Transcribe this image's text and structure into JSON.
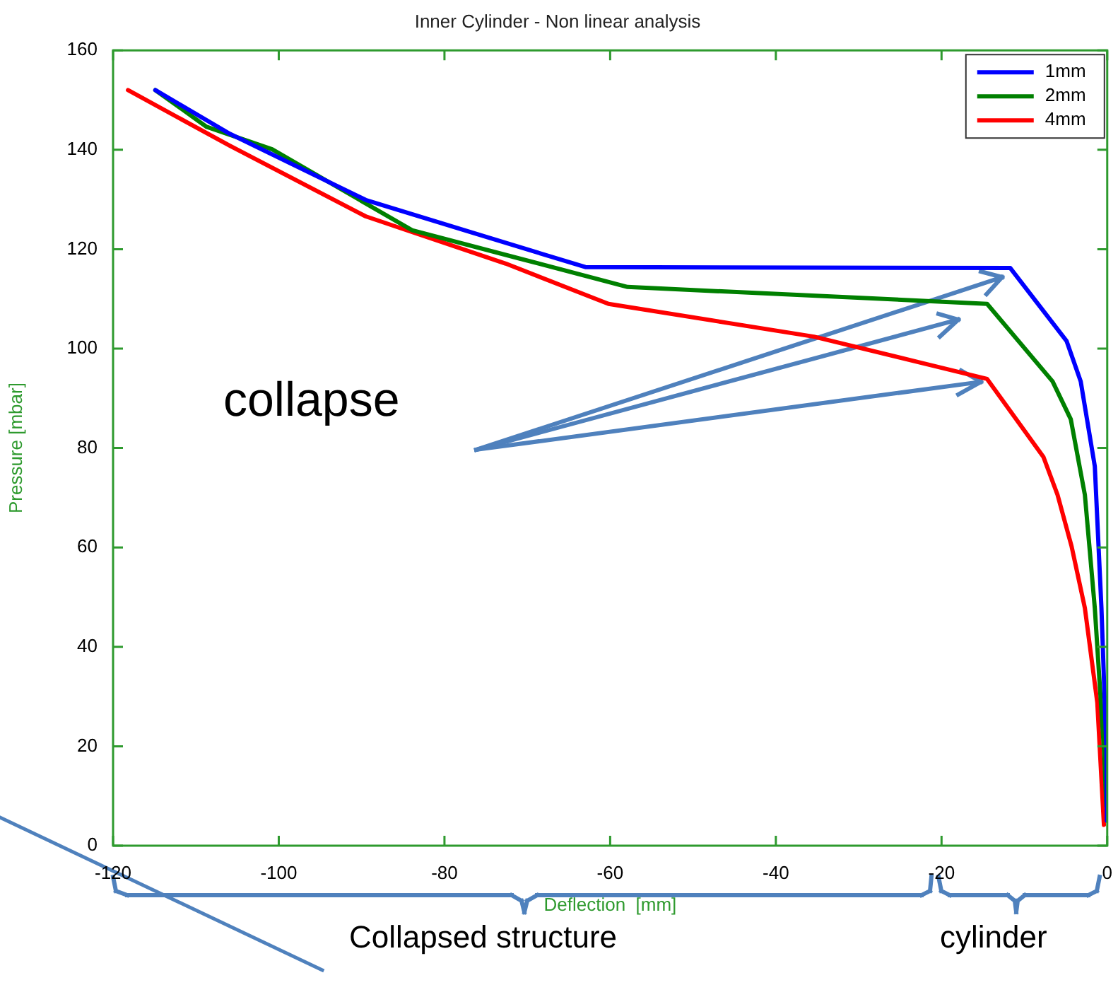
{
  "chart_data": {
    "type": "line",
    "title": "Inner Cylinder - Non linear analysis",
    "xlabel": "Deflection  [mm]",
    "ylabel": "Pressure [mbar]",
    "xlim": [
      -120,
      0
    ],
    "xticks": [
      -120,
      -100,
      -80,
      -60,
      -40,
      -20,
      0
    ],
    "ylim": [
      0,
      160
    ],
    "yticks": [
      0,
      20,
      40,
      60,
      80,
      100,
      120,
      140,
      160
    ],
    "legend": "top right",
    "marker": "none",
    "line_style": "solid",
    "series": [
      {
        "name": "1mm",
        "color": "#0000ff",
        "x": [
          -114.9,
          -105.9,
          -89.5,
          -76.6,
          -63.0,
          -11.7,
          -4.9,
          -3.2,
          -1.5,
          -0.7,
          -0.1,
          -0.05
        ],
        "values": [
          152,
          143.2,
          129.9,
          123.3,
          116.4,
          116.2,
          101.5,
          93.4,
          76.3,
          47.8,
          19.4,
          5
        ]
      },
      {
        "name": "2mm",
        "color": "#008000",
        "x": [
          -114.9,
          -108.7,
          -100.8,
          -83.9,
          -70.9,
          -57.9,
          -14.5,
          -6.6,
          -4.4,
          -2.7,
          -1.5,
          -0.4,
          -0.1
        ],
        "values": [
          152,
          144.6,
          140.1,
          123.8,
          118.1,
          112.4,
          109.0,
          93.4,
          85.8,
          70.6,
          47.8,
          19.4,
          8
        ]
      },
      {
        "name": "4mm",
        "color": "#ff0000",
        "x": [
          -118.2,
          -105.9,
          -89.5,
          -72.6,
          -60.2,
          -35.4,
          -14.5,
          -7.7,
          -6.0,
          -4.3,
          -2.7,
          -1.2,
          -0.4
        ],
        "values": [
          152,
          140.8,
          126.6,
          117.1,
          109.0,
          102.4,
          93.9,
          78.2,
          70.6,
          60.2,
          47.8,
          28.8,
          4.2
        ]
      }
    ],
    "annotations": [
      "collapse",
      "Collapsed structure",
      "cylinder"
    ]
  }
}
